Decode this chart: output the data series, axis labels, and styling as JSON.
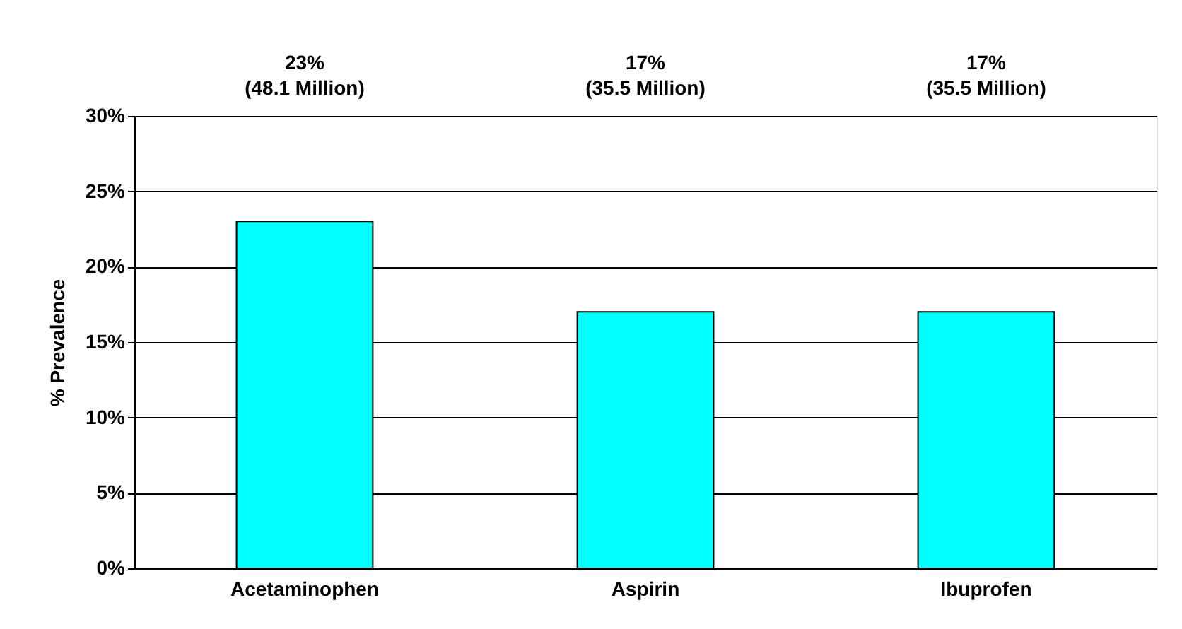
{
  "chart_data": {
    "type": "bar",
    "ylabel": "% Prevalence",
    "categories": [
      "Acetaminophen",
      "Aspirin",
      "Ibuprofen"
    ],
    "values": [
      23,
      17,
      17
    ],
    "color": "#00ffff",
    "value_labels": [
      "23%\n(48.1 Million)",
      "17%\n(35.5 Million)",
      "17%\n(35.5 Million)"
    ],
    "ylim": [
      0,
      30
    ],
    "yticks": [
      {
        "value": 0,
        "label": "0%"
      },
      {
        "value": 5,
        "label": "5%"
      },
      {
        "value": 10,
        "label": "10%"
      },
      {
        "value": 15,
        "label": "15%"
      },
      {
        "value": 20,
        "label": "20%"
      },
      {
        "value": 25,
        "label": "25%"
      },
      {
        "value": 30,
        "label": "30%"
      }
    ],
    "grid": "y"
  }
}
